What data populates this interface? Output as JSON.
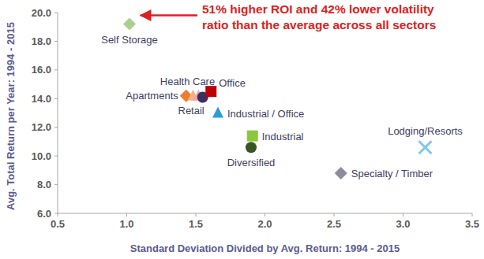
{
  "chart_data": {
    "type": "scatter",
    "x_label": "Standard Deviation Divided by Avg. Return: 1994 - 2015",
    "y_label": "Avg. Total Return per Year: 1994 - 2015",
    "annotation": [
      "51% higher ROI and 42% lower volatility",
      "ratio than the average across all sectors"
    ],
    "xlim": [
      0.5,
      3.5
    ],
    "xticks": [
      0.5,
      {
        "value": 1,
        "label": "1.0"
      },
      1.5,
      {
        "value": 2,
        "label": "2.0"
      },
      2.5,
      {
        "value": 3,
        "label": "3.0"
      },
      3.5
    ],
    "ylim": [
      6,
      20
    ],
    "yticks": [
      {
        "value": 6,
        "label": "6.0"
      },
      {
        "value": 8,
        "label": "8.0"
      },
      {
        "value": 10,
        "label": "10.0"
      },
      {
        "value": 12,
        "label": "12.0"
      },
      {
        "value": 14,
        "label": "14.0"
      },
      {
        "value": 16,
        "label": "16.0"
      },
      {
        "value": 18,
        "label": "18.0"
      },
      {
        "value": 20,
        "label": "20.0"
      }
    ],
    "grid": false,
    "series": [
      {
        "name": "Self Storage",
        "color": "#a9d18e",
        "marker": "diamond",
        "x": [
          1.02
        ],
        "values": [
          19.2
        ]
      },
      {
        "name": "Apartments",
        "color": "#ed7d31",
        "marker": "diamond",
        "x": [
          1.43
        ],
        "values": [
          14.2
        ]
      },
      {
        "name": null,
        "color": "#f4b183",
        "marker": "triangle",
        "x": [
          1.48
        ],
        "values": [
          14.2
        ]
      },
      {
        "name": "Health Care",
        "color": "#f4a0b4",
        "marker": "triangle",
        "x": [
          1.52
        ],
        "values": [
          14.2
        ]
      },
      {
        "name": "Retail",
        "color": "#3b3060",
        "marker": "circle",
        "x": [
          1.55
        ],
        "values": [
          14.1
        ]
      },
      {
        "name": "Office",
        "color": "#c00000",
        "marker": "square",
        "x": [
          1.61
        ],
        "values": [
          14.5
        ]
      },
      {
        "name": "Industrial / Office",
        "color": "#2e9bd6",
        "marker": "triangle",
        "x": [
          1.66
        ],
        "values": [
          13.0
        ]
      },
      {
        "name": "Industrial",
        "color": "#8dc63f",
        "marker": "square",
        "x": [
          1.91
        ],
        "values": [
          11.4
        ]
      },
      {
        "name": "Diversified",
        "color": "#375623",
        "marker": "circle",
        "x": [
          1.9
        ],
        "values": [
          10.6
        ]
      },
      {
        "name": "Lodging/Resorts",
        "color": "#7ec8e8",
        "marker": "x",
        "x": [
          3.16
        ],
        "values": [
          10.6
        ]
      },
      {
        "name": "Specialty / Timber",
        "color": "#8c8c9e",
        "marker": "diamond",
        "x": [
          2.55
        ],
        "values": [
          8.8
        ]
      }
    ]
  }
}
